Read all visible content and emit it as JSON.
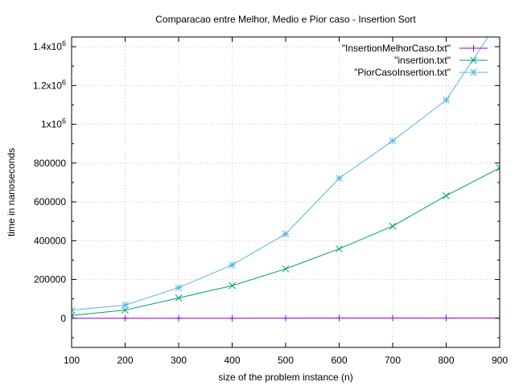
{
  "chart_data": {
    "type": "line",
    "title": "Comparacao entre Melhor, Medio e Pior caso - Insertion Sort",
    "xlabel": "size of the problem instance (n)",
    "ylabel": "time in nanoseconds",
    "xlim": [
      100,
      900
    ],
    "ylim": [
      -150000,
      1450000
    ],
    "xticks": [
      100,
      200,
      300,
      400,
      500,
      600,
      700,
      800,
      900
    ],
    "xtick_labels": [
      "100",
      "200",
      "300",
      "400",
      "500",
      "600",
      "700",
      "800",
      "900"
    ],
    "yticks": [
      0,
      200000,
      400000,
      600000,
      800000,
      1000000,
      1200000,
      1400000
    ],
    "ytick_labels": [
      {
        "base": "0",
        "sup": ""
      },
      {
        "base": "200000",
        "sup": ""
      },
      {
        "base": "400000",
        "sup": ""
      },
      {
        "base": "600000",
        "sup": ""
      },
      {
        "base": "800000",
        "sup": ""
      },
      {
        "base": "1x10",
        "sup": "6"
      },
      {
        "base": "1.2x10",
        "sup": "6"
      },
      {
        "base": "1.4x10",
        "sup": "6"
      }
    ],
    "grid": true,
    "legend_position": "top-right",
    "series": [
      {
        "name": "\"InsertionMelhorCaso.txt\"",
        "color": "#9400d3",
        "marker": "plus",
        "x": [
          100,
          200,
          300,
          400,
          500,
          600,
          700,
          800,
          900
        ],
        "y": [
          500,
          500,
          500,
          500,
          1000,
          1500,
          1500,
          1500,
          2000
        ]
      },
      {
        "name": "\"insertion.txt\"",
        "color": "#009e73",
        "marker": "x",
        "x": [
          100,
          200,
          300,
          400,
          500,
          600,
          700,
          800,
          900
        ],
        "y": [
          15000,
          42000,
          105000,
          168000,
          255000,
          358000,
          475000,
          632000,
          775000
        ]
      },
      {
        "name": "\"PiorCasoInsertion.txt\"",
        "color": "#56b4e9",
        "marker": "star",
        "x": [
          100,
          200,
          300,
          400,
          500,
          600,
          700,
          800,
          900
        ],
        "y": [
          42000,
          68000,
          158000,
          275000,
          435000,
          722000,
          915000,
          1125000,
          1540000
        ]
      }
    ]
  }
}
